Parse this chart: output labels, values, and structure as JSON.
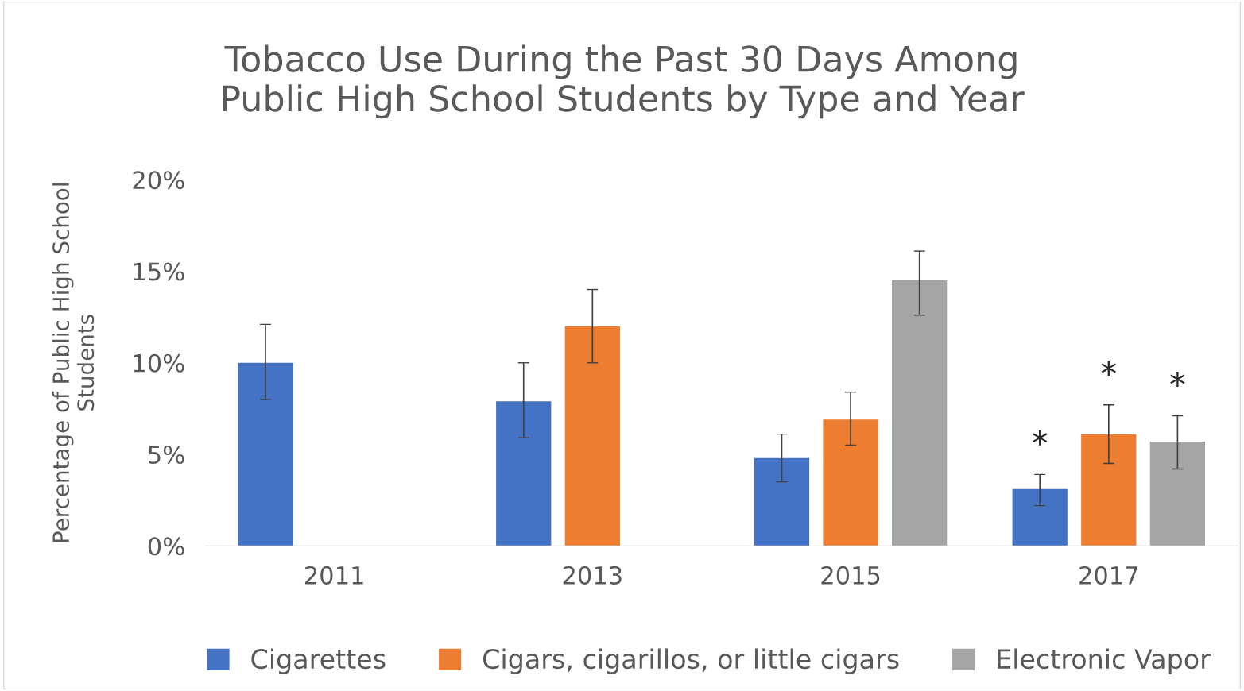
{
  "chart_data": {
    "type": "bar",
    "title": "Tobacco Use During the Past 30 Days Among\nPublic High School Students by Type and Year",
    "ylabel": "Percentage of Public High School\nStudents",
    "categories": [
      "2011",
      "2013",
      "2015",
      "2017"
    ],
    "series": [
      {
        "name": "Cigarettes",
        "color": "#4472c4",
        "values": [
          10.0,
          7.9,
          4.8,
          3.1
        ],
        "errors": [
          [
            8.0,
            12.1
          ],
          [
            5.9,
            10.0
          ],
          [
            3.5,
            6.1
          ],
          [
            2.2,
            3.9
          ]
        ]
      },
      {
        "name": "Cigars, cigarillos, or little cigars",
        "color": "#ed7d31",
        "values": [
          null,
          12.0,
          6.9,
          6.1
        ],
        "errors": [
          null,
          [
            10.0,
            14.0
          ],
          [
            5.5,
            8.4
          ],
          [
            4.5,
            7.7
          ]
        ]
      },
      {
        "name": "Electronic Vapor",
        "color": "#a5a5a5",
        "values": [
          null,
          null,
          14.5,
          5.7
        ],
        "errors": [
          null,
          null,
          [
            12.6,
            16.1
          ],
          [
            4.2,
            7.1
          ]
        ]
      }
    ],
    "ylim": [
      0,
      20
    ],
    "yticks": [
      {
        "value": 0,
        "label": "0%"
      },
      {
        "value": 5,
        "label": "5%"
      },
      {
        "value": 10,
        "label": "10%"
      },
      {
        "value": 15,
        "label": "15%"
      },
      {
        "value": 20,
        "label": "20%"
      }
    ],
    "annotations": [
      "*",
      "*",
      "*"
    ],
    "grid": false,
    "legend": "bottom"
  }
}
